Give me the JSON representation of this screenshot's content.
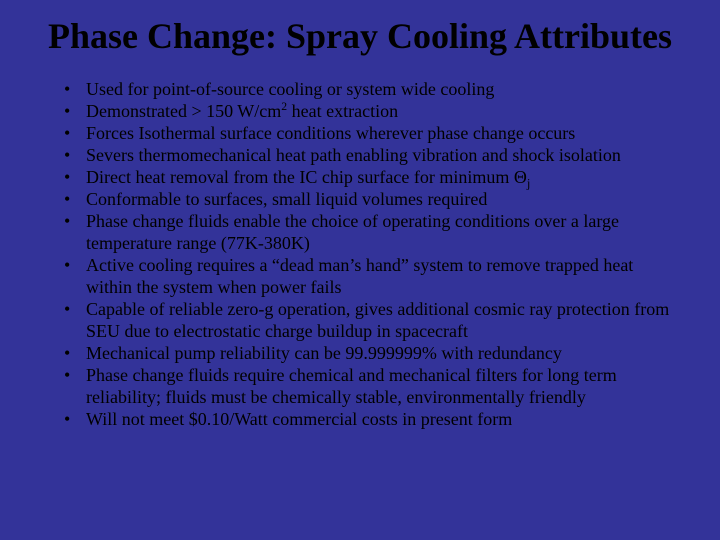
{
  "slide": {
    "background_color": "#333399",
    "text_color": "#000000",
    "font_family": "Times New Roman",
    "title": {
      "text": "Phase Change: Spray Cooling Attributes",
      "fontsize": 36,
      "weight": "bold",
      "align": "center"
    },
    "bullets_fontsize": 18,
    "bullets": [
      {
        "text": "Used for point-of-source cooling or system wide cooling"
      },
      {
        "pre": "Demonstrated > 150 W/cm",
        "sup": "2",
        "post": " heat extraction"
      },
      {
        "text": "Forces Isothermal surface conditions wherever phase change occurs"
      },
      {
        "text": "Severs thermomechanical heat path enabling vibration and shock isolation"
      },
      {
        "pre": "Direct heat removal from the IC chip surface for minimum Θ",
        "sub": "j"
      },
      {
        "text": "Conformable to surfaces, small liquid volumes required"
      },
      {
        "text": "Phase change fluids enable the choice of operating conditions over a large temperature range (77K-380K)"
      },
      {
        "text": "Active cooling requires a “dead man’s hand” system to remove trapped heat within the system when power fails"
      },
      {
        "text": "Capable of reliable zero-g operation, gives additional cosmic ray protection from SEU due to electrostatic charge buildup in spacecraft"
      },
      {
        "text": "Mechanical pump reliability can be 99.999999% with redundancy"
      },
      {
        "text": "Phase change fluids require chemical and mechanical filters for long term reliability; fluids must be chemically stable, environmentally friendly"
      },
      {
        "text": "Will not meet $0.10/Watt commercial costs in present form"
      }
    ]
  }
}
